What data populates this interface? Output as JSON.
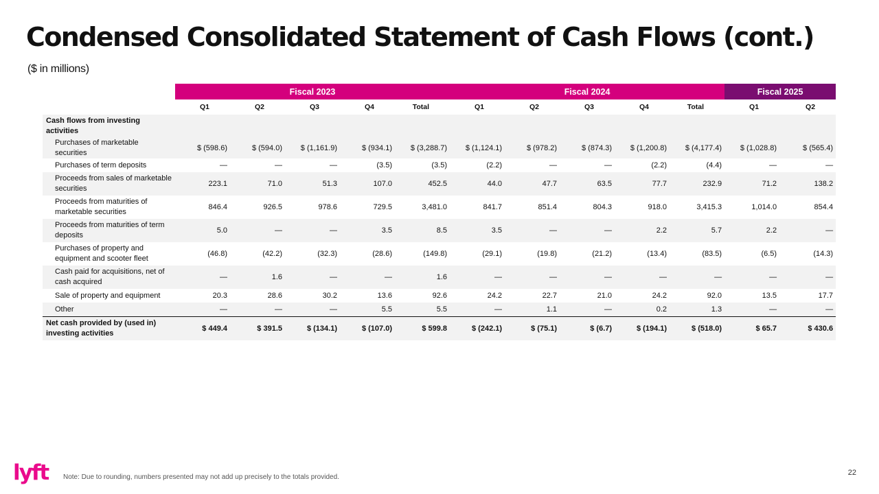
{
  "header": {
    "title": "Condensed Consolidated Statement of Cash Flows (cont.)",
    "subtitle": "($ in millions)"
  },
  "colors": {
    "fiscal_2023": "#d4007d",
    "fiscal_2024": "#d4007d",
    "fiscal_2025": "#7a0d70",
    "row_shade": "#f2f2f2",
    "logo": "#ea0b8c"
  },
  "table": {
    "fiscal_years": [
      "Fiscal 2023",
      "Fiscal 2024",
      "Fiscal 2025"
    ],
    "quarters": [
      "Q1",
      "Q2",
      "Q3",
      "Q4",
      "Total",
      "Q1",
      "Q2",
      "Q3",
      "Q4",
      "Total",
      "Q1",
      "Q2"
    ],
    "section_label": "Cash flows from investing activities",
    "rows": [
      {
        "label": "Purchases of marketable securities",
        "values": [
          "$ (598.6)",
          "$ (594.0)",
          "$ (1,161.9)",
          "$ (934.1)",
          "$ (3,288.7)",
          "$ (1,124.1)",
          "$ (978.2)",
          "$ (874.3)",
          "$ (1,200.8)",
          "$ (4,177.4)",
          "$ (1,028.8)",
          "$ (565.4)"
        ]
      },
      {
        "label": "Purchases of term deposits",
        "values": [
          "—",
          "—",
          "—",
          "(3.5)",
          "(3.5)",
          "(2.2)",
          "—",
          "—",
          "(2.2)",
          "(4.4)",
          "—",
          "—"
        ]
      },
      {
        "label": "Proceeds from sales of marketable securities",
        "values": [
          "223.1",
          "71.0",
          "51.3",
          "107.0",
          "452.5",
          "44.0",
          "47.7",
          "63.5",
          "77.7",
          "232.9",
          "71.2",
          "138.2"
        ]
      },
      {
        "label": "Proceeds from maturities of marketable securities",
        "values": [
          "846.4",
          "926.5",
          "978.6",
          "729.5",
          "3,481.0",
          "841.7",
          "851.4",
          "804.3",
          "918.0",
          "3,415.3",
          "1,014.0",
          "854.4"
        ]
      },
      {
        "label": "Proceeds from maturities of term deposits",
        "values": [
          "5.0",
          "—",
          "—",
          "3.5",
          "8.5",
          "3.5",
          "—",
          "—",
          "2.2",
          "5.7",
          "2.2",
          "—"
        ]
      },
      {
        "label": "Purchases of property and equipment and scooter fleet",
        "values": [
          "(46.8)",
          "(42.2)",
          "(32.3)",
          "(28.6)",
          "(149.8)",
          "(29.1)",
          "(19.8)",
          "(21.2)",
          "(13.4)",
          "(83.5)",
          "(6.5)",
          "(14.3)"
        ]
      },
      {
        "label": "Cash paid for acquisitions, net of cash acquired",
        "values": [
          "—",
          "1.6",
          "—",
          "—",
          "1.6",
          "—",
          "—",
          "—",
          "—",
          "—",
          "—",
          "—"
        ]
      },
      {
        "label": "Sale of property and equipment",
        "values": [
          "20.3",
          "28.6",
          "30.2",
          "13.6",
          "92.6",
          "24.2",
          "22.7",
          "21.0",
          "24.2",
          "92.0",
          "13.5",
          "17.7"
        ]
      },
      {
        "label": "Other",
        "values": [
          "—",
          "—",
          "—",
          "5.5",
          "5.5",
          "—",
          "1.1",
          "—",
          "0.2",
          "1.3",
          "—",
          "—"
        ]
      }
    ],
    "total_row": {
      "label": "Net cash provided by (used in) investing activities",
      "values": [
        "$ 449.4",
        "$ 391.5",
        "$ (134.1)",
        "$ (107.0)",
        "$ 599.8",
        "$ (242.1)",
        "$ (75.1)",
        "$ (6.7)",
        "$ (194.1)",
        "$ (518.0)",
        "$ 65.7",
        "$ 430.6"
      ]
    }
  },
  "footer": {
    "note": "Note: Due to rounding, numbers presented may not add up precisely to the totals provided.",
    "page_number": "22",
    "logo_text": "lyft"
  }
}
